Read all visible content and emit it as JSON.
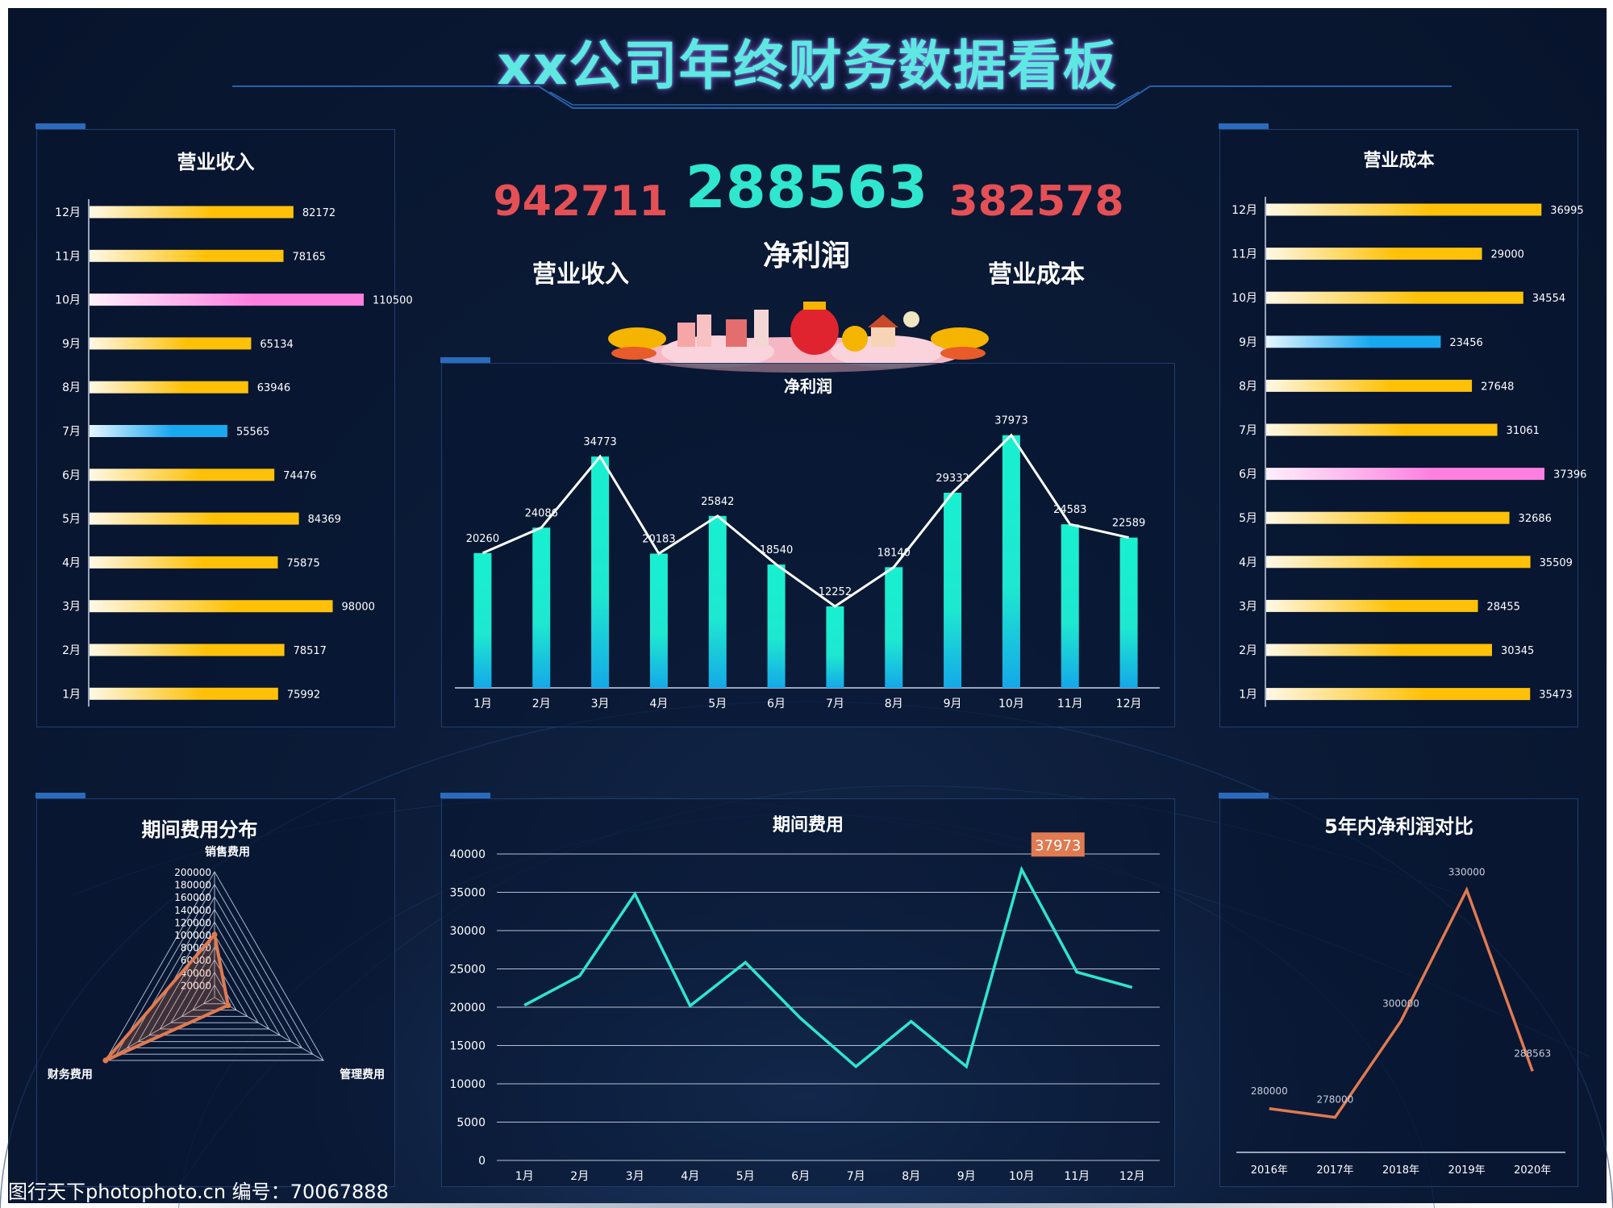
{
  "title": "xx公司年终财务数据看板",
  "kpis": {
    "revenue": {
      "value": "942711",
      "label": "营业收入"
    },
    "profit": {
      "value": "288563",
      "label": "净利润"
    },
    "cost": {
      "value": "382578",
      "label": "营业成本"
    }
  },
  "panels": {
    "revenue": "营业收入",
    "cost": "营业成本",
    "profit": "净利润",
    "radar": "期间费用分布",
    "expense": "期间费用",
    "five": "5年内净利润对比"
  },
  "watermark": "图行天下photophoto.cn 编号：70067888",
  "colors": {
    "gold": "#ffc107",
    "pink": "#ff7fe0",
    "blue": "#17a8f0",
    "cyan": "#1ee8d0",
    "orange": "#e07a50",
    "red": "#e45055"
  },
  "chart_data": [
    {
      "id": "revenue",
      "type": "bar",
      "orientation": "horizontal",
      "title": "营业收入",
      "categories": [
        "12月",
        "11月",
        "10月",
        "9月",
        "8月",
        "7月",
        "6月",
        "5月",
        "4月",
        "3月",
        "2月",
        "1月"
      ],
      "values": [
        82172,
        78165,
        110500,
        65134,
        63946,
        55565,
        74476,
        84369,
        75875,
        98000,
        78517,
        75992
      ],
      "labels": [
        "82172",
        "78165",
        "110500",
        "65134",
        "63946",
        "55565",
        "74476",
        "84369",
        "75875",
        "98000",
        "78517",
        "75992"
      ],
      "highlight": {
        "10月": "pink",
        "7月": "blue"
      },
      "xlim": [
        0,
        110500
      ]
    },
    {
      "id": "cost",
      "type": "bar",
      "orientation": "horizontal",
      "title": "营业成本",
      "categories": [
        "12月",
        "11月",
        "10月",
        "9月",
        "8月",
        "7月",
        "6月",
        "5月",
        "4月",
        "3月",
        "2月",
        "1月"
      ],
      "values": [
        36995,
        29000,
        34554,
        23456,
        27648,
        31061,
        37396,
        32686,
        35509,
        28455,
        30345,
        35473
      ],
      "labels": [
        "36995",
        "29000",
        "34554",
        "23456",
        "27648",
        "31061",
        "37396",
        "32686",
        "35509",
        "28455",
        "30345",
        "35473"
      ],
      "highlight": {
        "6月": "pink",
        "9月": "blue"
      },
      "xlim": [
        0,
        37396
      ]
    },
    {
      "id": "profit",
      "type": "bar",
      "title": "净利润",
      "categories": [
        "1月",
        "2月",
        "3月",
        "4月",
        "5月",
        "6月",
        "7月",
        "8月",
        "9月",
        "10月",
        "11月",
        "12月"
      ],
      "values": [
        20260,
        24086,
        34773,
        20183,
        25842,
        18540,
        12252,
        18140,
        29332,
        37973,
        24583,
        22589
      ],
      "labels": [
        "20260",
        "24086",
        "34773",
        "20183",
        "25842",
        "18540",
        "12252",
        "18140",
        "29332",
        "37973",
        "24583",
        "22589"
      ],
      "overlay": "line",
      "ylim": [
        0,
        40000
      ]
    },
    {
      "id": "radar",
      "type": "radar",
      "title": "期间费用分布",
      "axes": [
        "销售费用",
        "管理费用",
        "财务费用"
      ],
      "ticks": [
        "200000",
        "180000",
        "160000",
        "140000",
        "120000",
        "100000",
        "80000",
        "60000",
        "40000",
        "20000"
      ],
      "values": [
        100000,
        25000,
        200000
      ],
      "max": 200000
    },
    {
      "id": "expense",
      "type": "line",
      "title": "期间费用",
      "categories": [
        "1月",
        "2月",
        "3月",
        "4月",
        "5月",
        "6月",
        "7月",
        "8月",
        "9月",
        "10月",
        "11月",
        "12月"
      ],
      "values": [
        20260,
        24086,
        34773,
        20183,
        25842,
        18540,
        12252,
        18140,
        12252,
        37973,
        24583,
        22589
      ],
      "yticks": [
        "0",
        "5000",
        "10000",
        "15000",
        "20000",
        "25000",
        "30000",
        "35000",
        "40000"
      ],
      "ylim": [
        0,
        40000
      ],
      "callout": "37973",
      "callout_index": 9,
      "grid": true
    },
    {
      "id": "five",
      "type": "line",
      "title": "5年内净利润对比",
      "categories": [
        "2016年",
        "2017年",
        "2018年",
        "2019年",
        "2020年"
      ],
      "values": [
        280000,
        278000,
        300000,
        330000,
        288563
      ],
      "labels": [
        "280000",
        "278000",
        "300000",
        "330000",
        "288563"
      ],
      "ylim": [
        270000,
        336000
      ]
    }
  ]
}
